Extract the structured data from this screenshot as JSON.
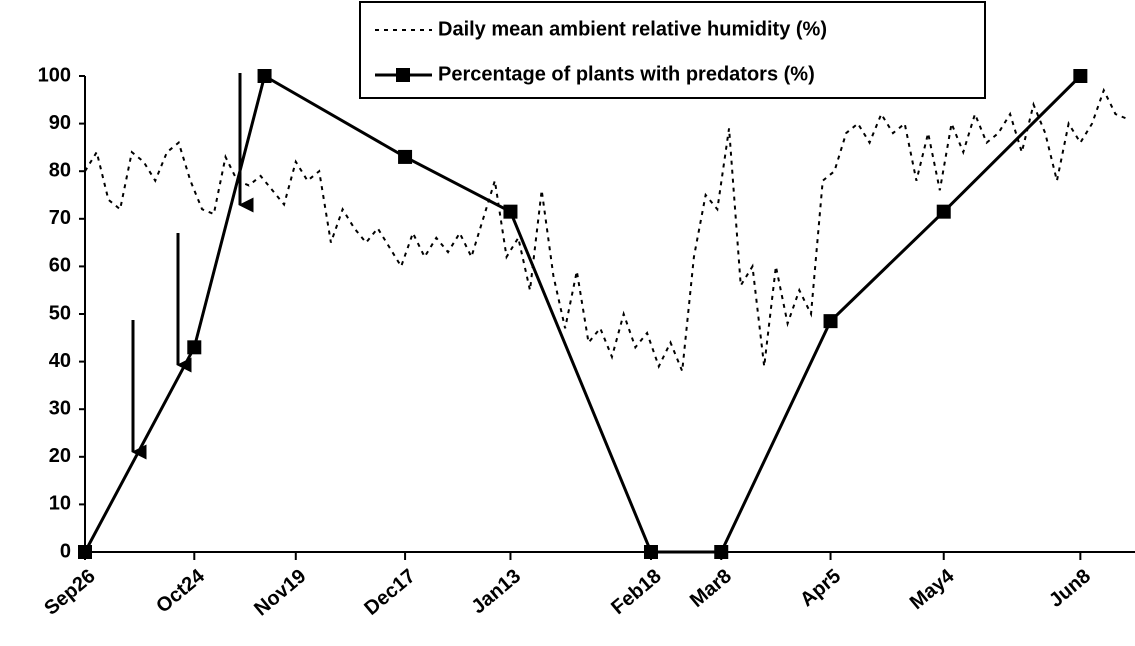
{
  "chart_data": {
    "type": "line",
    "xlim": [
      0,
      269
    ],
    "xticks": [
      {
        "value": 0,
        "label": "Sep26"
      },
      {
        "value": 28,
        "label": "Oct24"
      },
      {
        "value": 54,
        "label": "Nov19"
      },
      {
        "value": 82,
        "label": "Dec17"
      },
      {
        "value": 109,
        "label": "Jan13"
      },
      {
        "value": 145,
        "label": "Feb18"
      },
      {
        "value": 163,
        "label": "Mar8"
      },
      {
        "value": 191,
        "label": "Apr5"
      },
      {
        "value": 220,
        "label": "May4"
      },
      {
        "value": 255,
        "label": "Jun8"
      }
    ],
    "ylim": [
      0,
      100
    ],
    "yticks": [
      0,
      10,
      20,
      30,
      40,
      50,
      60,
      70,
      80,
      90,
      100
    ],
    "legend": "top",
    "series": [
      {
        "name": "Daily mean ambient relative humidity (%)",
        "color": "#000000",
        "line_style": "dotted",
        "x": [
          0,
          3,
          6,
          9,
          12,
          15,
          18,
          21,
          24,
          27,
          30,
          33,
          36,
          39,
          42,
          45,
          48,
          51,
          54,
          57,
          60,
          63,
          66,
          69,
          72,
          75,
          78,
          81,
          84,
          87,
          90,
          93,
          96,
          99,
          102,
          105,
          108,
          111,
          114,
          117,
          120,
          123,
          126,
          129,
          132,
          135,
          138,
          141,
          144,
          147,
          150,
          153,
          156,
          159,
          162,
          165,
          168,
          171,
          174,
          177,
          180,
          183,
          186,
          189,
          192,
          195,
          198,
          201,
          204,
          207,
          210,
          213,
          216,
          219,
          222,
          225,
          228,
          231,
          234,
          237,
          240,
          243,
          246,
          249,
          252,
          255,
          258,
          261,
          264,
          267
        ],
        "values": [
          80,
          84,
          74,
          72,
          84,
          82,
          78,
          84,
          86,
          78,
          72,
          71,
          83,
          78,
          77,
          79,
          76,
          73,
          82,
          78,
          80,
          65,
          72,
          68,
          65,
          68,
          64,
          60,
          67,
          62,
          66,
          63,
          67,
          62,
          70,
          78,
          62,
          66,
          55,
          76,
          58,
          47,
          59,
          44,
          47,
          41,
          50,
          43,
          46,
          39,
          44,
          38,
          62,
          75,
          72,
          89,
          56,
          60,
          39,
          60,
          48,
          55,
          50,
          78,
          80,
          88,
          90,
          86,
          92,
          88,
          90,
          78,
          88,
          76,
          90,
          84,
          92,
          86,
          88,
          92,
          84,
          94,
          88,
          78,
          90,
          86,
          90,
          97,
          92,
          91
        ]
      },
      {
        "name": "Percentage of plants with predators (%)",
        "color": "#000000",
        "line_style": "solid",
        "marker": "square",
        "x": [
          0,
          28,
          46,
          82,
          109,
          145,
          163,
          191,
          220,
          255
        ],
        "values": [
          0,
          43,
          100,
          83,
          71.5,
          0,
          0,
          48.5,
          71.5,
          100
        ]
      }
    ]
  }
}
